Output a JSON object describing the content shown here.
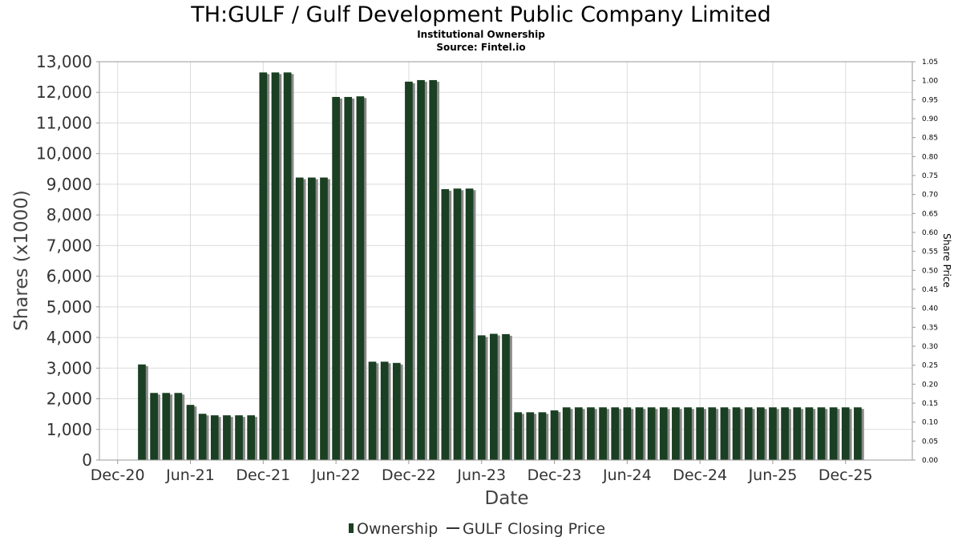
{
  "chart_data": {
    "type": "bar",
    "title": "TH:GULF / Gulf Development Public Company Limited",
    "subtitle_lines": [
      "Institutional Ownership",
      "Source: Fintel.io"
    ],
    "xlabel": "Date",
    "ylabel": "Shares (x1000)",
    "y2label": "Share Price",
    "ylim": [
      0,
      13000
    ],
    "y_ticks": [
      0,
      1000,
      2000,
      3000,
      4000,
      5000,
      6000,
      7000,
      8000,
      9000,
      10000,
      11000,
      12000,
      13000
    ],
    "y_tick_labels": [
      "0",
      "1,000",
      "2,000",
      "3,000",
      "4,000",
      "5,000",
      "6,000",
      "7,000",
      "8,000",
      "9,000",
      "10,000",
      "11,000",
      "12,000",
      "13,000"
    ],
    "y2lim": [
      0,
      1.05
    ],
    "y2_ticks": [
      0,
      0.05,
      0.1,
      0.15,
      0.2,
      0.25,
      0.3,
      0.35,
      0.4,
      0.45,
      0.5,
      0.55,
      0.6,
      0.65,
      0.7,
      0.75,
      0.8,
      0.85,
      0.9,
      0.95,
      1.0,
      1.05
    ],
    "y2_tick_labels": [
      "0.00",
      "0.05",
      "0.10",
      "0.15",
      "0.20",
      "0.25",
      "0.30",
      "0.35",
      "0.40",
      "0.45",
      "0.50",
      "0.55",
      "0.60",
      "0.65",
      "0.70",
      "0.75",
      "0.80",
      "0.85",
      "0.90",
      "0.95",
      "1.00",
      "1.05"
    ],
    "x_tick_labels": [
      "Dec-20",
      "Jun-21",
      "Dec-21",
      "Jun-22",
      "Dec-22",
      "Jun-23",
      "Dec-23",
      "Jun-24",
      "Dec-24",
      "Jun-25",
      "Dec-25"
    ],
    "x_tick_months": [
      0,
      6,
      12,
      18,
      24,
      30,
      36,
      42,
      48,
      54,
      60
    ],
    "xlim_months": [
      -1.5,
      65.5
    ],
    "grid": true,
    "legend_position": "bottom-center",
    "series": [
      {
        "name": "Ownership",
        "color": "#1a3f22",
        "shadow_color": "#8a8a8a",
        "months": [
          2,
          3,
          4,
          5,
          6,
          7,
          8,
          9,
          10,
          11,
          12,
          13,
          14,
          15,
          16,
          17,
          18,
          19,
          20,
          21,
          22,
          23,
          24,
          25,
          26,
          27,
          28,
          29,
          30,
          31,
          32,
          33,
          34,
          35,
          36,
          37,
          38,
          39,
          40,
          41,
          42,
          43,
          44,
          45,
          46,
          47,
          48,
          49,
          50,
          51,
          52,
          53,
          54,
          55,
          56,
          57,
          58,
          59,
          60,
          61
        ],
        "values": [
          3120,
          2190,
          2190,
          2190,
          1800,
          1510,
          1460,
          1460,
          1460,
          1460,
          12650,
          12650,
          12650,
          9220,
          9220,
          9220,
          11850,
          11850,
          11870,
          3210,
          3210,
          3170,
          12350,
          12400,
          12400,
          8840,
          8860,
          8860,
          4070,
          4120,
          4110,
          1560,
          1560,
          1560,
          1620,
          1720,
          1720,
          1720,
          1720,
          1720,
          1720,
          1720,
          1720,
          1720,
          1720,
          1720,
          1720,
          1720,
          1720,
          1720,
          1720,
          1720,
          1720,
          1720,
          1720,
          1720,
          1720,
          1720,
          1720,
          1720
        ]
      },
      {
        "name": "GULF Closing Price",
        "color": "#333333",
        "values": []
      }
    ]
  }
}
